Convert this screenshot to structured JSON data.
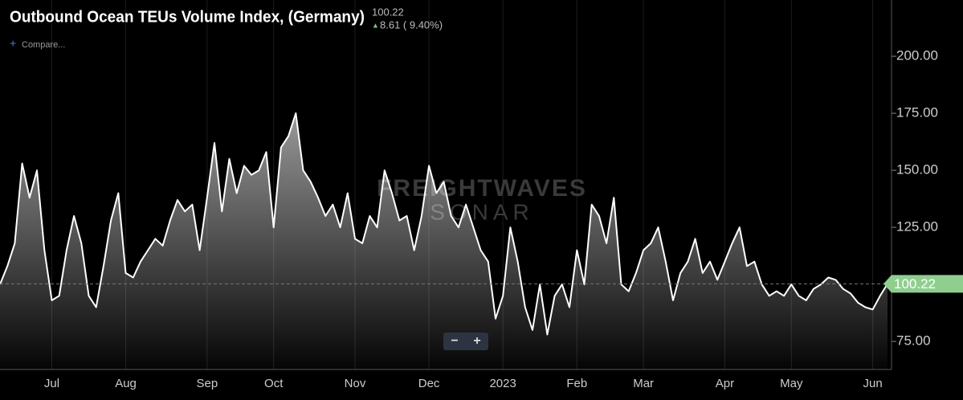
{
  "chart_data": {
    "type": "line",
    "title": "Outbound Ocean TEUs Volume Index, (Germany)",
    "last_value": "100.22",
    "change": "8.61 ( 9.40%)",
    "compare": "Compare...",
    "watermark": [
      "FREIGHTWAVES",
      "SONAR"
    ],
    "categories": [
      null,
      null,
      null,
      null,
      null,
      null,
      null,
      "Jul",
      null,
      null,
      null,
      null,
      null,
      null,
      null,
      null,
      null,
      "Aug",
      null,
      null,
      null,
      null,
      null,
      null,
      null,
      null,
      null,
      null,
      "Sep",
      null,
      null,
      null,
      null,
      null,
      null,
      null,
      null,
      "Oct",
      null,
      null,
      null,
      null,
      null,
      null,
      null,
      null,
      null,
      null,
      "Nov",
      null,
      null,
      null,
      null,
      null,
      null,
      null,
      null,
      null,
      "Dec",
      null,
      null,
      null,
      null,
      null,
      null,
      null,
      null,
      null,
      "2023",
      null,
      null,
      null,
      null,
      null,
      null,
      null,
      null,
      null,
      "Feb",
      null,
      null,
      null,
      null,
      null,
      null,
      null,
      null,
      "Mar",
      null,
      null,
      null,
      null,
      null,
      null,
      null,
      null,
      null,
      null,
      "Apr",
      null,
      null,
      null,
      null,
      null,
      null,
      null,
      null,
      "May",
      null,
      null,
      null,
      null,
      null,
      null,
      null,
      null,
      null,
      null,
      "Jun",
      null,
      null
    ],
    "series": [
      {
        "name": "Outbound Ocean TEUs Volume Index, (Germany)",
        "color": "#ffffff",
        "values": [
          100,
          108,
          118,
          153,
          138,
          150,
          115,
          93,
          95,
          115,
          130,
          118,
          95,
          90,
          108,
          128,
          140,
          105,
          103,
          110,
          115,
          120,
          117,
          128,
          137,
          132,
          135,
          115,
          138,
          162,
          132,
          155,
          140,
          152,
          148,
          150,
          158,
          125,
          160,
          165,
          175,
          150,
          145,
          138,
          130,
          135,
          125,
          140,
          120,
          118,
          130,
          125,
          150,
          140,
          128,
          130,
          115,
          130,
          152,
          140,
          145,
          130,
          125,
          135,
          125,
          115,
          110,
          85,
          95,
          125,
          110,
          90,
          80,
          100,
          78,
          95,
          100,
          90,
          115,
          100,
          135,
          130,
          118,
          138,
          100,
          97,
          105,
          115,
          118,
          125,
          110,
          93,
          105,
          110,
          120,
          105,
          110,
          102,
          110,
          118,
          125,
          108,
          110,
          100,
          95,
          97,
          95,
          100,
          95,
          93,
          98,
          100,
          103,
          102,
          98,
          96,
          92,
          90,
          89,
          95,
          100.22
        ]
      }
    ],
    "ylim": [
      62.7,
      222.9
    ],
    "yticks": [
      {
        "value": 75,
        "label": "75.00"
      },
      {
        "value": 125,
        "label": "125.00"
      },
      {
        "value": 150,
        "label": "150.00"
      },
      {
        "value": 175,
        "label": "175.00"
      },
      {
        "value": 200,
        "label": "200.00"
      }
    ]
  }
}
